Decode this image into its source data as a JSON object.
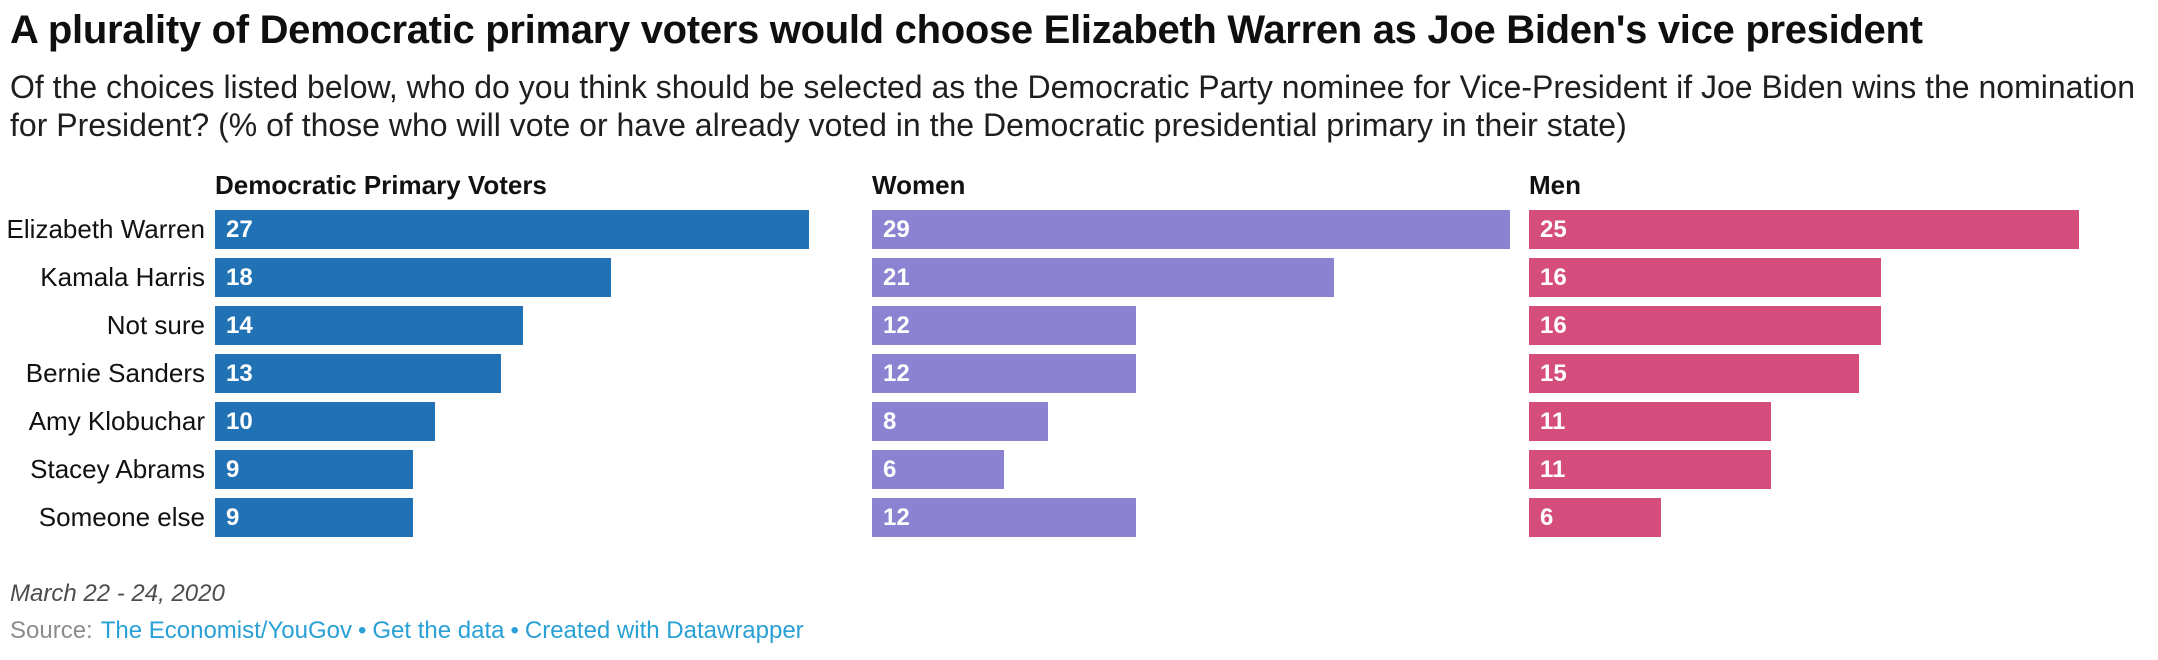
{
  "header": {
    "title": "A plurality of Democratic primary voters would choose Elizabeth Warren as Joe Biden's vice president",
    "subtitle": "Of the choices listed below, who do you think should be selected as the Democratic Party nominee for Vice-President if Joe Biden wins the nomination for President? (% of those who will vote or have already voted in the Democratic presidential primary in their state)"
  },
  "chart_data": {
    "type": "bar",
    "orientation": "horizontal",
    "layout": "split-columns",
    "categories": [
      "Elizabeth Warren",
      "Kamala Harris",
      "Not sure",
      "Bernie Sanders",
      "Amy Klobuchar",
      "Stacey Abrams",
      "Someone else"
    ],
    "series": [
      {
        "name": "Democratic Primary Voters",
        "color": "#2171b5",
        "values": [
          27,
          18,
          14,
          13,
          10,
          9,
          9
        ]
      },
      {
        "name": "Women",
        "color": "#8c82d2",
        "values": [
          29,
          21,
          12,
          12,
          8,
          6,
          12
        ]
      },
      {
        "name": "Men",
        "color": "#d44d7c",
        "values": [
          25,
          16,
          16,
          15,
          11,
          11,
          6
        ]
      }
    ],
    "value_labels": "inside-start",
    "xlim": [
      0,
      29
    ],
    "grid": false,
    "legend": "column-headers"
  },
  "footer": {
    "notes": "March 22 - 24, 2020",
    "source_prefix": "Source:",
    "separator": "•",
    "links": [
      {
        "label": "The Economist/YouGov"
      },
      {
        "label": "Get the data"
      },
      {
        "label": "Created with Datawrapper"
      }
    ],
    "link_color": "#29a0d6"
  }
}
